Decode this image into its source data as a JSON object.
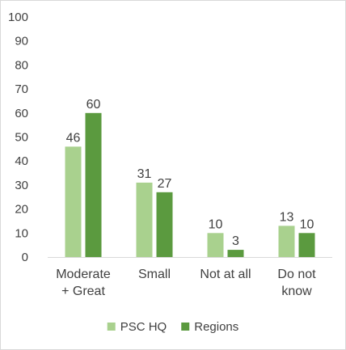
{
  "chart_data": {
    "type": "bar",
    "categories": [
      [
        "Moderate",
        "+ Great"
      ],
      [
        "Small"
      ],
      [
        "Not at all"
      ],
      [
        "Do not",
        "know"
      ]
    ],
    "series": [
      {
        "name": "PSC HQ",
        "values": [
          46,
          31,
          10,
          13
        ],
        "color": "#a9d18e"
      },
      {
        "name": "Regions",
        "values": [
          60,
          27,
          3,
          10
        ],
        "color": "#5b9a3f"
      }
    ],
    "y_ticks": [
      0,
      10,
      20,
      30,
      40,
      50,
      60,
      70,
      80,
      90,
      100
    ],
    "ylim": [
      0,
      100
    ],
    "grid": false,
    "legend_position": "bottom",
    "data_labels": true
  }
}
